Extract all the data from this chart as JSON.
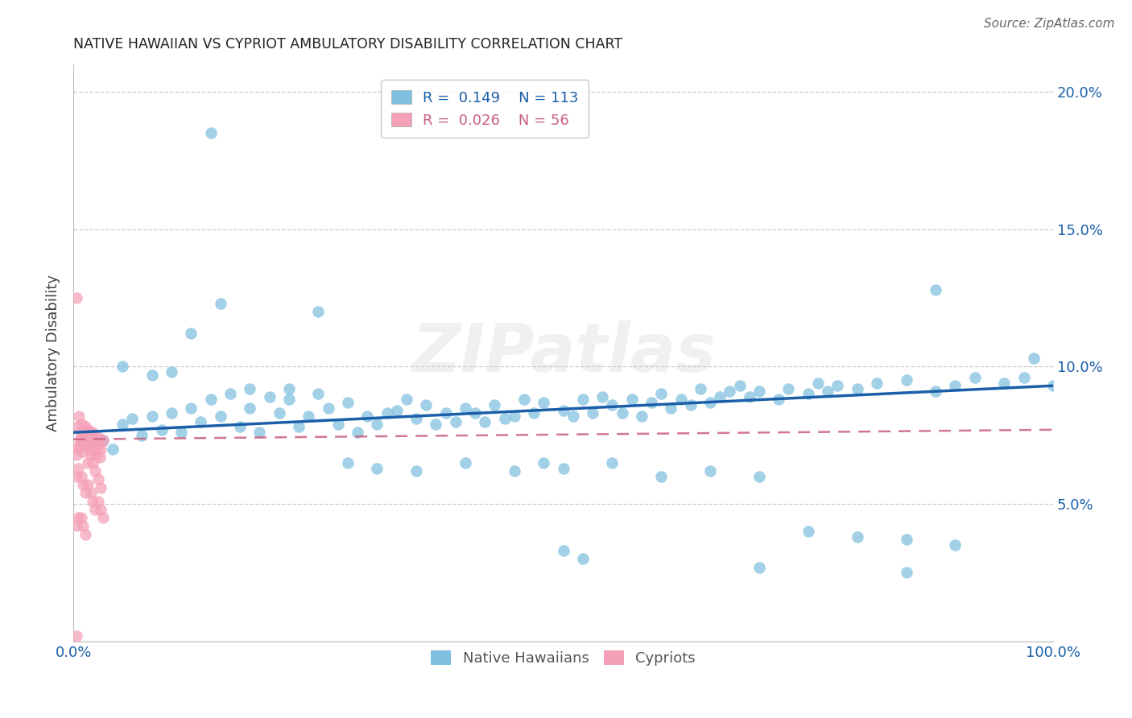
{
  "title": "NATIVE HAWAIIAN VS CYPRIOT AMBULATORY DISABILITY CORRELATION CHART",
  "source": "Source: ZipAtlas.com",
  "ylabel": "Ambulatory Disability",
  "blue_color": "#7fbfdf",
  "pink_color": "#f4a0b8",
  "blue_line_color": "#1a5fa8",
  "pink_line_color": "#c86080",
  "legend_R_blue": "0.149",
  "legend_N_blue": "113",
  "legend_R_pink": "0.026",
  "legend_N_pink": "56",
  "watermark": "ZIPatlas",
  "blue_points_x": [
    0.02,
    0.03,
    0.04,
    0.05,
    0.06,
    0.07,
    0.08,
    0.09,
    0.1,
    0.11,
    0.12,
    0.13,
    0.14,
    0.15,
    0.16,
    0.17,
    0.18,
    0.19,
    0.2,
    0.21,
    0.22,
    0.23,
    0.24,
    0.25,
    0.26,
    0.27,
    0.28,
    0.29,
    0.3,
    0.31,
    0.32,
    0.33,
    0.34,
    0.35,
    0.36,
    0.37,
    0.38,
    0.39,
    0.4,
    0.41,
    0.42,
    0.43,
    0.44,
    0.45,
    0.46,
    0.47,
    0.48,
    0.5,
    0.51,
    0.52,
    0.53,
    0.54,
    0.55,
    0.56,
    0.57,
    0.58,
    0.59,
    0.6,
    0.61,
    0.62,
    0.63,
    0.64,
    0.65,
    0.66,
    0.67,
    0.68,
    0.69,
    0.7,
    0.72,
    0.73,
    0.75,
    0.76,
    0.77,
    0.78,
    0.8,
    0.82,
    0.85,
    0.88,
    0.9,
    0.92,
    0.95,
    0.97,
    0.98,
    1.0,
    0.14,
    0.05,
    0.08,
    0.1,
    0.12,
    0.15,
    0.18,
    0.22,
    0.25,
    0.28,
    0.31,
    0.35,
    0.4,
    0.45,
    0.5,
    0.55,
    0.6,
    0.65,
    0.7,
    0.75,
    0.8,
    0.85,
    0.9,
    0.48,
    0.5,
    0.52,
    0.7,
    0.85,
    0.88
  ],
  "blue_points_y": [
    0.075,
    0.073,
    0.07,
    0.079,
    0.081,
    0.075,
    0.082,
    0.077,
    0.083,
    0.076,
    0.085,
    0.08,
    0.088,
    0.082,
    0.09,
    0.078,
    0.085,
    0.076,
    0.089,
    0.083,
    0.088,
    0.078,
    0.082,
    0.09,
    0.085,
    0.079,
    0.087,
    0.076,
    0.082,
    0.079,
    0.083,
    0.084,
    0.088,
    0.081,
    0.086,
    0.079,
    0.083,
    0.08,
    0.085,
    0.083,
    0.08,
    0.086,
    0.081,
    0.082,
    0.088,
    0.083,
    0.087,
    0.084,
    0.082,
    0.088,
    0.083,
    0.089,
    0.086,
    0.083,
    0.088,
    0.082,
    0.087,
    0.09,
    0.085,
    0.088,
    0.086,
    0.092,
    0.087,
    0.089,
    0.091,
    0.093,
    0.089,
    0.091,
    0.088,
    0.092,
    0.09,
    0.094,
    0.091,
    0.093,
    0.092,
    0.094,
    0.095,
    0.091,
    0.093,
    0.096,
    0.094,
    0.096,
    0.103,
    0.093,
    0.185,
    0.1,
    0.097,
    0.098,
    0.112,
    0.123,
    0.092,
    0.092,
    0.12,
    0.065,
    0.063,
    0.062,
    0.065,
    0.062,
    0.063,
    0.065,
    0.06,
    0.062,
    0.06,
    0.04,
    0.038,
    0.037,
    0.035,
    0.065,
    0.033,
    0.03,
    0.027,
    0.025,
    0.128
  ],
  "pink_points_x": [
    0.003,
    0.004,
    0.005,
    0.006,
    0.007,
    0.008,
    0.009,
    0.01,
    0.011,
    0.012,
    0.013,
    0.014,
    0.015,
    0.016,
    0.017,
    0.018,
    0.019,
    0.02,
    0.021,
    0.022,
    0.023,
    0.024,
    0.025,
    0.026,
    0.027,
    0.028,
    0.03,
    0.003,
    0.005,
    0.007,
    0.01,
    0.012,
    0.015,
    0.018,
    0.02,
    0.022,
    0.025,
    0.028,
    0.003,
    0.005,
    0.008,
    0.01,
    0.012,
    0.015,
    0.018,
    0.02,
    0.022,
    0.025,
    0.028,
    0.03,
    0.003,
    0.005,
    0.008,
    0.01,
    0.012,
    0.003
  ],
  "pink_points_y": [
    0.125,
    0.078,
    0.07,
    0.082,
    0.073,
    0.076,
    0.079,
    0.072,
    0.075,
    0.078,
    0.071,
    0.074,
    0.077,
    0.073,
    0.076,
    0.07,
    0.073,
    0.076,
    0.069,
    0.072,
    0.075,
    0.068,
    0.071,
    0.074,
    0.067,
    0.07,
    0.073,
    0.068,
    0.071,
    0.074,
    0.069,
    0.072,
    0.065,
    0.068,
    0.065,
    0.062,
    0.059,
    0.056,
    0.06,
    0.063,
    0.06,
    0.057,
    0.054,
    0.057,
    0.054,
    0.051,
    0.048,
    0.051,
    0.048,
    0.045,
    0.042,
    0.045,
    0.045,
    0.042,
    0.039,
    0.002
  ],
  "blue_trend_x": [
    0.0,
    1.0
  ],
  "blue_trend_y": [
    0.076,
    0.093
  ],
  "pink_trend_x": [
    0.0,
    1.0
  ],
  "pink_trend_y": [
    0.0735,
    0.077
  ],
  "xlim": [
    0.0,
    1.0
  ],
  "ylim": [
    0.0,
    0.21
  ],
  "ytick_vals": [
    0.0,
    0.05,
    0.1,
    0.15,
    0.2
  ],
  "ytick_labels": [
    "",
    "5.0%",
    "10.0%",
    "15.0%",
    "20.0%"
  ],
  "xtick_vals": [
    0.0,
    0.1,
    0.2,
    0.3,
    0.4,
    0.5,
    0.6,
    0.7,
    0.8,
    0.9,
    1.0
  ],
  "xtick_labels": [
    "0.0%",
    "",
    "",
    "",
    "",
    "",
    "",
    "",
    "",
    "",
    "100.0%"
  ]
}
